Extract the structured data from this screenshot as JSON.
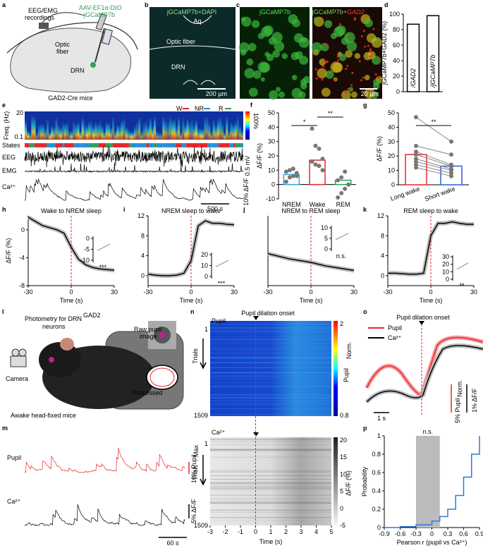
{
  "panel_labels": [
    "a",
    "b",
    "c",
    "d",
    "e",
    "f",
    "g",
    "h",
    "i",
    "j",
    "k",
    "l",
    "m",
    "n",
    "o",
    "p"
  ],
  "a": {
    "texts": [
      "EEG/EMG",
      "recordings",
      "AAV-EF1α-DIO",
      "-jGCaMP7b",
      "Optic",
      "fiber",
      "DRN",
      "GAD2-Cre mice"
    ]
  },
  "b": {
    "title": "jGCaMP7b+DAPI",
    "texts": [
      "Aq",
      "Optic fiber",
      "DRN",
      "200 µm"
    ]
  },
  "c": {
    "left_title": "jGCaMP7b",
    "right_title": "jGCaMP7b+",
    "right_gene": "GAD2",
    "scale": "20 µm"
  },
  "d": {
    "type": "bar",
    "ylabel": "jGCaMP7b+GAD2 (%)",
    "categories": [
      "/GAD2",
      "/jGCaMP7b"
    ],
    "values": [
      87,
      98
    ],
    "ylim": [
      0,
      100
    ],
    "yticks": [
      0,
      20,
      40,
      60,
      80,
      100
    ]
  },
  "e": {
    "ylabel": "Freq. (Hz)",
    "freq_ticks": [
      20,
      0.1
    ],
    "tracks": [
      "States",
      "EEG",
      "EMG",
      "Ca²⁺"
    ],
    "legend": [
      "W",
      "NR",
      "R"
    ],
    "legend_colors": [
      "#e8262b",
      "#2b8fd6",
      "#2ca25f"
    ],
    "colorbar": "100%",
    "ca_scale": "10% ΔF/F",
    "eeg_scale": "0.5 mV",
    "time_scale": "500 s"
  },
  "f": {
    "type": "bar",
    "ylabel": "ΔF/F (%)",
    "categories": [
      "NREM",
      "Wake",
      "REM"
    ],
    "values": [
      7,
      17,
      3
    ],
    "colors": [
      "#2aa7df",
      "#e8262b",
      "#2ca25f"
    ],
    "points": [
      [
        2,
        5,
        6,
        8,
        9,
        10,
        11,
        6
      ],
      [
        39,
        27,
        25,
        18,
        16,
        14,
        13,
        10
      ],
      [
        -9,
        -6,
        -3,
        0,
        3,
        5,
        9
      ]
    ],
    "ylim": [
      -10,
      50
    ],
    "yticks": [
      -10,
      0,
      10,
      20,
      30,
      40,
      50
    ],
    "annotations": [
      "*",
      "**"
    ]
  },
  "g": {
    "type": "bar",
    "ylabel": "ΔF/F (%)",
    "categories": [
      "Long wake",
      "Short wake"
    ],
    "values": [
      21,
      13
    ],
    "colors": [
      "#e8262b",
      "#2b5fd6"
    ],
    "pairs": [
      [
        47,
        30
      ],
      [
        27,
        21
      ],
      [
        23,
        14
      ],
      [
        21,
        13
      ],
      [
        18,
        11
      ],
      [
        16,
        10
      ],
      [
        14,
        8
      ],
      [
        12,
        6
      ]
    ],
    "ylim": [
      0,
      50
    ],
    "yticks": [
      0,
      10,
      20,
      30,
      40,
      50
    ],
    "annotations": [
      "**"
    ]
  },
  "h": {
    "type": "line",
    "title": "Wake to NREM sleep",
    "x": [
      -30,
      -25,
      -20,
      -15,
      -10,
      -5,
      0,
      5,
      10,
      15,
      20,
      25,
      30
    ],
    "values": [
      1.8,
      1.2,
      0.6,
      0.3,
      0,
      -0.5,
      -2.5,
      -4.2,
      -5,
      -5.4,
      -5.6,
      -5.7,
      -5.8
    ],
    "xlim": [
      -30,
      30
    ],
    "xticks": [
      -30,
      0,
      30
    ],
    "ylim": [
      -8,
      2
    ],
    "yticks": [
      -8,
      -4,
      0
    ],
    "xlabel": "Time (s)",
    "ylabel": "ΔF/F (%)",
    "inset": {
      "ylim": [
        -11,
        1
      ],
      "yticks": [
        0,
        -5,
        -10
      ],
      "annotation": "***"
    }
  },
  "i": {
    "type": "line",
    "title": "NREM sleep to wake",
    "x": [
      -30,
      -25,
      -20,
      -15,
      -10,
      -5,
      0,
      5,
      10,
      15,
      20,
      25,
      30
    ],
    "values": [
      0.3,
      0.1,
      0,
      0,
      0.1,
      0.5,
      3,
      10,
      11,
      10.5,
      10.5,
      10.3,
      10.2
    ],
    "xlim": [
      -30,
      30
    ],
    "xticks": [
      -30,
      0,
      30
    ],
    "ylim": [
      -2,
      12
    ],
    "yticks": [
      0,
      4,
      8,
      12
    ],
    "xlabel": "Time (s)",
    "inset": {
      "ylim": [
        -2,
        22
      ],
      "yticks": [
        0,
        10,
        20
      ],
      "annotation": "***"
    }
  },
  "j": {
    "type": "line",
    "title": "NREM to REM sleep",
    "x": [
      -30,
      -25,
      -20,
      -15,
      -10,
      -5,
      0,
      5,
      10,
      15,
      20,
      25,
      30
    ],
    "values": [
      1.5,
      1.2,
      0.9,
      0.6,
      0.4,
      0.2,
      0,
      -0.3,
      -0.6,
      -0.8,
      -1,
      -1.2,
      -1.4
    ],
    "xlim": [
      -30,
      30
    ],
    "xticks": [
      -30,
      0,
      30
    ],
    "ylim": [
      -4,
      8
    ],
    "xlabel": "Time (s)",
    "inset": {
      "ylim": [
        -1,
        11
      ],
      "yticks": [
        0,
        5,
        10
      ],
      "annotation": "n.s."
    }
  },
  "k": {
    "type": "line",
    "title": "REM sleep to wake",
    "x": [
      -30,
      -25,
      -20,
      -15,
      -10,
      -5,
      0,
      5,
      10,
      15,
      20,
      25,
      30
    ],
    "values": [
      0.5,
      0.5,
      0.4,
      0.3,
      0.3,
      0.5,
      8,
      10.5,
      10.5,
      10.8,
      10.5,
      10.3,
      10.3
    ],
    "xlim": [
      -30,
      30
    ],
    "xticks": [
      -30,
      0,
      30
    ],
    "ylim": [
      -2,
      12
    ],
    "yticks": [
      0,
      4,
      8,
      12
    ],
    "xlabel": "Time (s)",
    "inset": {
      "ylim": [
        -2,
        32
      ],
      "yticks": [
        0,
        10,
        20,
        30
      ],
      "annotation": "**"
    }
  },
  "l": {
    "texts": [
      "Photometry for DRN",
      "GAD2",
      "neurons",
      "Camera",
      "Awake head-fixed mice",
      "Raw pupil",
      "image",
      "Processed"
    ]
  },
  "m": {
    "tracks": [
      "Pupil",
      "Ca²⁺"
    ],
    "pupil_scale": "10% Pupil",
    "pupil_sub": "Max",
    "ca_scale": "5% ΔF/F",
    "time_scale": "60 s"
  },
  "n": {
    "title": "Pupil dilation onset",
    "top_label": "Pupil",
    "bottom_label": "Ca²⁺",
    "trial_ticks": [
      1,
      1509
    ],
    "ylabel": "Trials",
    "pupil_cbar": [
      2,
      0.8
    ],
    "pupil_cbar_label": "Pupil",
    "pupil_cbar_sub": "Norm.",
    "ca_cbar": [
      20,
      15,
      10,
      5,
      0,
      -5
    ],
    "ca_cbar_label": "ΔF/F (%)",
    "xticks": [
      -3,
      -2,
      -1,
      0,
      1,
      2,
      3,
      4,
      5
    ],
    "xlabel": "Time (s)"
  },
  "o": {
    "title": "Pupil dilation onset",
    "legend": [
      "Pupil",
      "Ca²⁺"
    ],
    "legend_colors": [
      "#e8262b",
      "#000000"
    ],
    "time_scale": "1 s",
    "pupil_scale": "5% Pupil",
    "pupil_sub": "Norm.",
    "ca_scale": "1% ΔF/F"
  },
  "p": {
    "type": "line",
    "step": true,
    "x": [
      -0.9,
      -0.6,
      -0.3,
      0,
      0.15,
      0.3,
      0.45,
      0.6,
      0.75,
      0.9
    ],
    "values": [
      0,
      0.01,
      0.03,
      0.07,
      0.12,
      0.2,
      0.35,
      0.55,
      0.8,
      1
    ],
    "band": [
      -0.3,
      0.15
    ],
    "xlim": [
      -0.9,
      0.9
    ],
    "xticks": [
      -0.9,
      -0.6,
      -0.3,
      0,
      0.3,
      0.6,
      0.9
    ],
    "ylim": [
      0,
      1
    ],
    "yticks": [
      0,
      0.2,
      0.4,
      0.6,
      0.8,
      1
    ],
    "xlabel": "Pearson r (pupil vs Ca²⁺)",
    "ylabel": "Probability",
    "annotation": "n.s."
  }
}
